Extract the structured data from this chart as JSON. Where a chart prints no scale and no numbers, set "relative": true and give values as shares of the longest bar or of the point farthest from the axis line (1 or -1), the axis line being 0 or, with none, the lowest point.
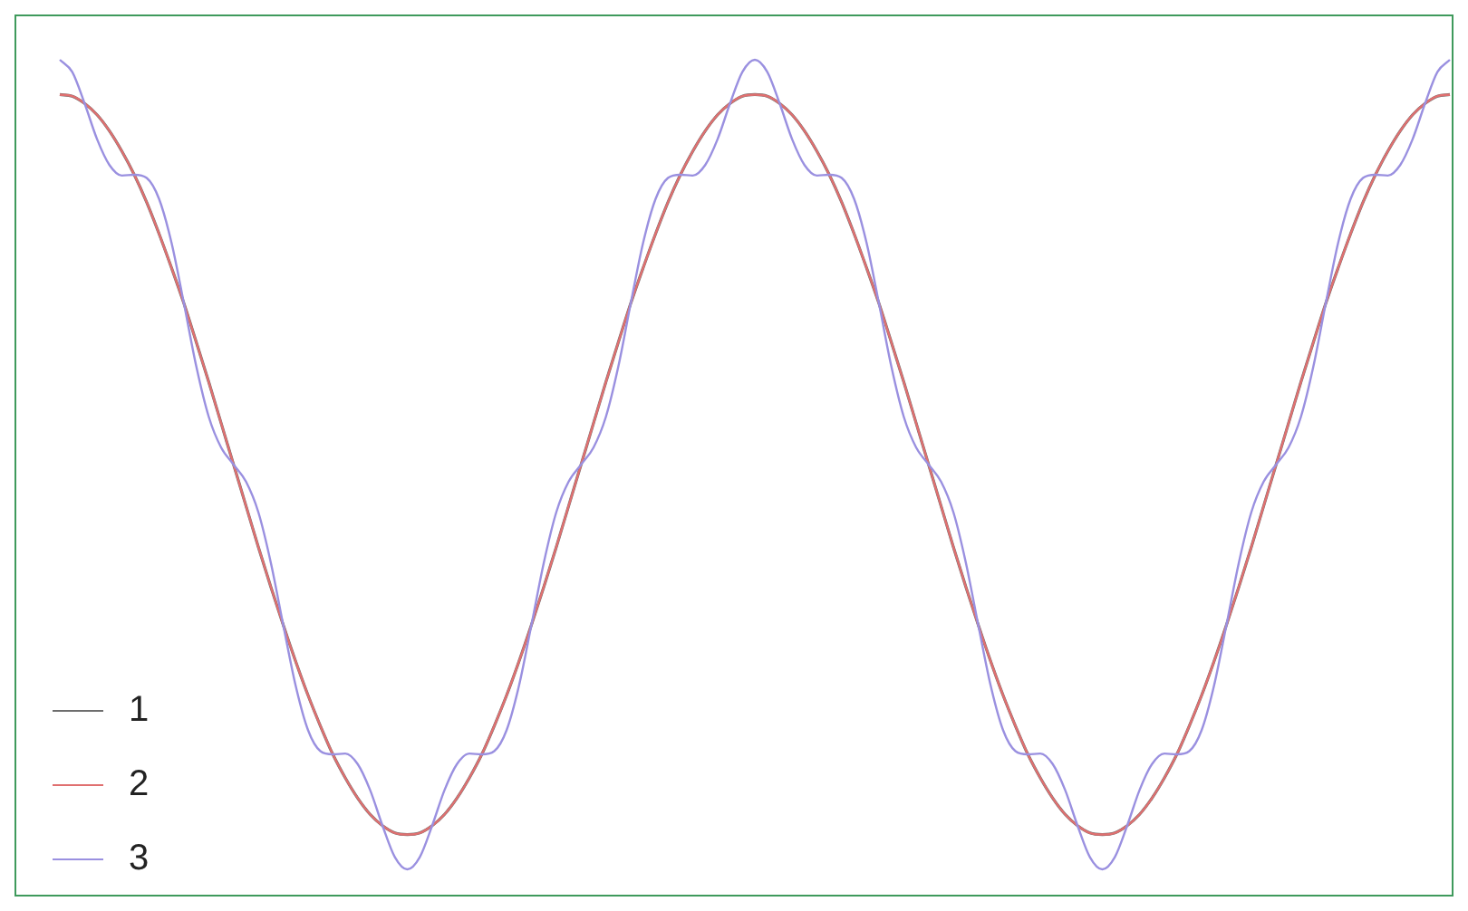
{
  "chart_data": {
    "type": "line",
    "relative": true,
    "legend": "bottom left",
    "categories": [
      null,
      null,
      null,
      null,
      null,
      null,
      null,
      null,
      null,
      null,
      null,
      null,
      null,
      null,
      null,
      null,
      null,
      null,
      null,
      null,
      null,
      null,
      null,
      null,
      null,
      null,
      null,
      null,
      null,
      null,
      null,
      null,
      null,
      null,
      null,
      null,
      null,
      null,
      null,
      null,
      null,
      null,
      null,
      null,
      null,
      null,
      null,
      null,
      null,
      null,
      null,
      null,
      null,
      null,
      null,
      null,
      null,
      null,
      null,
      null,
      null,
      null,
      null,
      null,
      null,
      null,
      null,
      null,
      null,
      null,
      null,
      null,
      null,
      null,
      null,
      null,
      null,
      null,
      null,
      null,
      null,
      null,
      null,
      null,
      null,
      null,
      null,
      null,
      null,
      null,
      null,
      null,
      null,
      null,
      null,
      null,
      null,
      null,
      null,
      null,
      null,
      null,
      null,
      null,
      null,
      null,
      null,
      null,
      null,
      null,
      null,
      null,
      null
    ],
    "series": [
      {
        "name": "1",
        "color": "#6e6e6e",
        "values": [
          0.957,
          0.955,
          0.946,
          0.932,
          0.912,
          0.887,
          0.858,
          0.824,
          0.785,
          0.743,
          0.699,
          0.651,
          0.602,
          0.551,
          0.5,
          0.449,
          0.398,
          0.349,
          0.302,
          0.257,
          0.215,
          0.177,
          0.142,
          0.113,
          0.088,
          0.068,
          0.054,
          0.045,
          0.043,
          0.045,
          0.054,
          0.068,
          0.088,
          0.113,
          0.142,
          0.177,
          0.215,
          0.257,
          0.302,
          0.349,
          0.398,
          0.449,
          0.5,
          0.551,
          0.602,
          0.651,
          0.699,
          0.743,
          0.785,
          0.824,
          0.858,
          0.887,
          0.912,
          0.932,
          0.946,
          0.955,
          0.957,
          0.955,
          0.946,
          0.932,
          0.912,
          0.887,
          0.858,
          0.824,
          0.785,
          0.743,
          0.699,
          0.651,
          0.602,
          0.551,
          0.5,
          0.449,
          0.398,
          0.349,
          0.302,
          0.257,
          0.215,
          0.177,
          0.142,
          0.113,
          0.088,
          0.068,
          0.054,
          0.045,
          0.043,
          0.045,
          0.054,
          0.068,
          0.088,
          0.113,
          0.142,
          0.177,
          0.215,
          0.257,
          0.302,
          0.349,
          0.398,
          0.449,
          0.5,
          0.551,
          0.602,
          0.651,
          0.699,
          0.743,
          0.785,
          0.824,
          0.858,
          0.887,
          0.912,
          0.932,
          0.946,
          0.955,
          0.957
        ]
      },
      {
        "name": "2",
        "color": "#e07070",
        "values": [
          0.957,
          0.955,
          0.946,
          0.932,
          0.912,
          0.887,
          0.858,
          0.824,
          0.785,
          0.743,
          0.699,
          0.651,
          0.602,
          0.551,
          0.5,
          0.449,
          0.398,
          0.349,
          0.302,
          0.257,
          0.215,
          0.177,
          0.142,
          0.113,
          0.088,
          0.068,
          0.054,
          0.045,
          0.043,
          0.045,
          0.054,
          0.068,
          0.088,
          0.113,
          0.142,
          0.177,
          0.215,
          0.257,
          0.302,
          0.349,
          0.398,
          0.449,
          0.5,
          0.551,
          0.602,
          0.651,
          0.699,
          0.743,
          0.785,
          0.824,
          0.858,
          0.887,
          0.912,
          0.932,
          0.946,
          0.955,
          0.957,
          0.955,
          0.946,
          0.932,
          0.912,
          0.887,
          0.858,
          0.824,
          0.785,
          0.743,
          0.699,
          0.651,
          0.602,
          0.551,
          0.5,
          0.449,
          0.398,
          0.349,
          0.302,
          0.257,
          0.215,
          0.177,
          0.142,
          0.113,
          0.088,
          0.068,
          0.054,
          0.045,
          0.043,
          0.045,
          0.054,
          0.068,
          0.088,
          0.113,
          0.142,
          0.177,
          0.215,
          0.257,
          0.302,
          0.349,
          0.398,
          0.449,
          0.5,
          0.551,
          0.602,
          0.651,
          0.699,
          0.743,
          0.785,
          0.824,
          0.858,
          0.887,
          0.912,
          0.932,
          0.946,
          0.955,
          0.957
        ]
      },
      {
        "name": "3",
        "color": "#9a90e0",
        "values": [
          1,
          0.985,
          0.946,
          0.902,
          0.87,
          0.857,
          0.858,
          0.854,
          0.828,
          0.774,
          0.699,
          0.621,
          0.559,
          0.521,
          0.5,
          0.479,
          0.441,
          0.379,
          0.302,
          0.227,
          0.172,
          0.146,
          0.142,
          0.143,
          0.13,
          0.098,
          0.054,
          0.015,
          0,
          0.015,
          0.054,
          0.098,
          0.13,
          0.143,
          0.142,
          0.146,
          0.172,
          0.227,
          0.302,
          0.379,
          0.441,
          0.479,
          0.5,
          0.521,
          0.559,
          0.621,
          0.699,
          0.774,
          0.828,
          0.854,
          0.858,
          0.857,
          0.87,
          0.902,
          0.946,
          0.985,
          1,
          0.985,
          0.946,
          0.902,
          0.87,
          0.857,
          0.858,
          0.854,
          0.828,
          0.774,
          0.699,
          0.621,
          0.559,
          0.521,
          0.5,
          0.479,
          0.441,
          0.379,
          0.302,
          0.227,
          0.172,
          0.146,
          0.142,
          0.143,
          0.13,
          0.098,
          0.054,
          0.015,
          0,
          0.015,
          0.054,
          0.098,
          0.13,
          0.143,
          0.142,
          0.146,
          0.172,
          0.227,
          0.302,
          0.379,
          0.441,
          0.479,
          0.5,
          0.521,
          0.559,
          0.621,
          0.699,
          0.774,
          0.828,
          0.854,
          0.858,
          0.857,
          0.87,
          0.902,
          0.946,
          0.985,
          1
        ]
      }
    ]
  }
}
